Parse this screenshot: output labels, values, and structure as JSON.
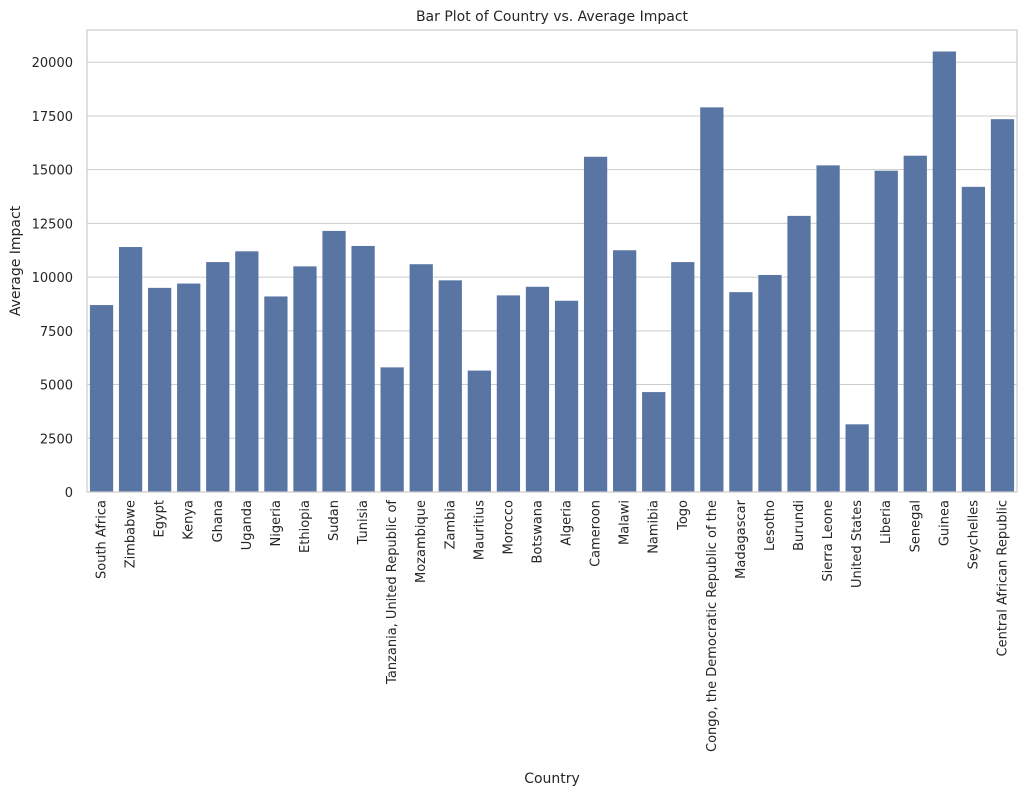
{
  "chart_data": {
    "type": "bar",
    "title": "Bar Plot of Country vs. Average Impact",
    "xlabel": "Country",
    "ylabel": "Average Impact",
    "ylim": [
      0,
      21500
    ],
    "yticks": [
      0,
      2500,
      5000,
      7500,
      10000,
      12500,
      15000,
      17500,
      20000
    ],
    "grid": "horizontal",
    "bar_color": "#5875a4",
    "categories": [
      "South Africa",
      "Zimbabwe",
      "Egypt",
      "Kenya",
      "Ghana",
      "Uganda",
      "Nigeria",
      "Ethiopia",
      "Sudan",
      "Tunisia",
      "Tanzania, United Republic of",
      "Mozambique",
      "Zambia",
      "Mauritius",
      "Morocco",
      "Botswana",
      "Algeria",
      "Cameroon",
      "Malawi",
      "Namibia",
      "Togo",
      "Congo, the Democratic Republic of the",
      "Madagascar",
      "Lesotho",
      "Burundi",
      "Sierra Leone",
      "United States",
      "Liberia",
      "Senegal",
      "Guinea",
      "Seychelles",
      "Central African Republic"
    ],
    "values": [
      8700,
      11400,
      9500,
      9700,
      10700,
      11200,
      9100,
      10500,
      12150,
      11450,
      5800,
      10600,
      9850,
      5650,
      9150,
      9550,
      8900,
      15600,
      11250,
      4650,
      10700,
      17900,
      9300,
      10100,
      12850,
      15200,
      3150,
      14950,
      15650,
      20500,
      14200,
      17350
    ]
  }
}
